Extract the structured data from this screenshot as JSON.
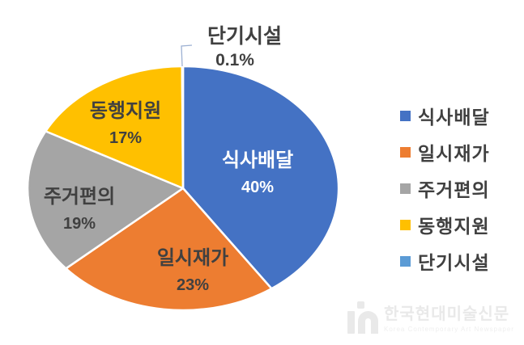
{
  "page": {
    "background": "#FFFFFF"
  },
  "chart_data": {
    "type": "pie",
    "title": "",
    "categories": [
      "식사배달",
      "일시재가",
      "주거편의",
      "동행지원",
      "단기시설"
    ],
    "values": [
      40,
      23,
      19,
      17,
      0.1
    ],
    "value_labels": [
      "40%",
      "23%",
      "19%",
      "17%",
      "0.1%"
    ],
    "colors": [
      "#4472C4",
      "#ED7D31",
      "#A5A5A5",
      "#FFC000",
      "#5B9BD5"
    ],
    "slice_label_colors": [
      "#FFFFFF",
      "#404040",
      "#404040",
      "#404040",
      "#404040"
    ],
    "slice_border_color": "#FFFFFF",
    "start_angle_deg": 0,
    "direction": "clockwise",
    "legend": {
      "position": "right",
      "items": [
        "식사배달",
        "일시재가",
        "주거편의",
        "동행지원",
        "단기시설"
      ]
    },
    "outside_label": {
      "index": 4,
      "category": "단기시설",
      "value_label": "0.1%"
    },
    "leader_line_color": "#9DB1D3",
    "label_text_color": "#404040"
  },
  "watermark": {
    "logo": "in-monogram",
    "title": "한국현대미술신문",
    "subtitle": "Korea Contemporary Art Newspaper",
    "color": "#E9E9E9"
  }
}
